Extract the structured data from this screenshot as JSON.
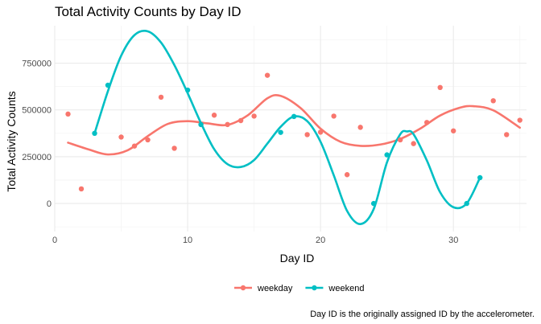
{
  "chart_data": {
    "type": "scatter",
    "title": "Total Activity Counts by Day ID",
    "xlabel": "Day ID",
    "ylabel": "Total Activity Counts",
    "caption": "Day ID is the originally assigned ID by the accelerometer.",
    "xlim": [
      0,
      35.5
    ],
    "ylim": [
      -150000,
      950000
    ],
    "x_ticks": [
      0,
      10,
      20,
      30
    ],
    "y_ticks": [
      0,
      250000,
      500000,
      750000
    ],
    "x_tick_labels": [
      "0",
      "10",
      "20",
      "30"
    ],
    "y_tick_labels": [
      "0",
      "250000",
      "500000",
      "750000"
    ],
    "grid": true,
    "legend_position": "bottom",
    "series": [
      {
        "name": "weekday",
        "color": "#F8766D",
        "points": [
          [
            1,
            478000
          ],
          [
            2,
            78000
          ],
          [
            5,
            355000
          ],
          [
            6,
            307000
          ],
          [
            7,
            340000
          ],
          [
            8,
            568000
          ],
          [
            9,
            295000
          ],
          [
            11,
            422000
          ],
          [
            12,
            472000
          ],
          [
            13,
            422000
          ],
          [
            14,
            443000
          ],
          [
            15,
            467000
          ],
          [
            16,
            685000
          ],
          [
            19,
            368000
          ],
          [
            20,
            381000
          ],
          [
            21,
            467000
          ],
          [
            22,
            154000
          ],
          [
            23,
            407000
          ],
          [
            26,
            340000
          ],
          [
            27,
            320000
          ],
          [
            28,
            433000
          ],
          [
            29,
            620000
          ],
          [
            30,
            388000
          ],
          [
            33,
            549000
          ],
          [
            34,
            368000
          ],
          [
            35,
            445000
          ]
        ],
        "smooth": [
          [
            1,
            325000
          ],
          [
            2.5,
            290000
          ],
          [
            4,
            262000
          ],
          [
            5.5,
            285000
          ],
          [
            7,
            360000
          ],
          [
            8.5,
            425000
          ],
          [
            10,
            440000
          ],
          [
            11.5,
            428000
          ],
          [
            13,
            420000
          ],
          [
            14.5,
            470000
          ],
          [
            16,
            562000
          ],
          [
            17,
            575000
          ],
          [
            18.5,
            510000
          ],
          [
            20,
            400000
          ],
          [
            21.5,
            330000
          ],
          [
            23,
            308000
          ],
          [
            24.5,
            315000
          ],
          [
            26,
            345000
          ],
          [
            27.5,
            400000
          ],
          [
            29,
            470000
          ],
          [
            30.5,
            512000
          ],
          [
            31.5,
            520000
          ],
          [
            33,
            498000
          ],
          [
            35,
            405000
          ]
        ]
      },
      {
        "name": "weekend",
        "color": "#00BFC4",
        "points": [
          [
            3,
            375000
          ],
          [
            4,
            632000
          ],
          [
            10,
            606000
          ],
          [
            11,
            422000
          ],
          [
            17,
            380000
          ],
          [
            18,
            465000
          ],
          [
            24,
            0
          ],
          [
            25,
            260000
          ],
          [
            31,
            0
          ],
          [
            32,
            138000
          ]
        ],
        "smooth": [
          [
            3,
            375000
          ],
          [
            4,
            600000
          ],
          [
            5,
            790000
          ],
          [
            6,
            900000
          ],
          [
            7,
            920000
          ],
          [
            8,
            860000
          ],
          [
            9,
            740000
          ],
          [
            10,
            590000
          ],
          [
            11,
            430000
          ],
          [
            12,
            290000
          ],
          [
            13,
            210000
          ],
          [
            14,
            195000
          ],
          [
            15,
            232000
          ],
          [
            16,
            320000
          ],
          [
            17,
            410000
          ],
          [
            18,
            465000
          ],
          [
            19,
            440000
          ],
          [
            20,
            330000
          ],
          [
            21,
            150000
          ],
          [
            22,
            -40000
          ],
          [
            23,
            -110000
          ],
          [
            24,
            -30000
          ],
          [
            25,
            220000
          ],
          [
            26,
            370000
          ],
          [
            26.5,
            385000
          ],
          [
            27,
            370000
          ],
          [
            28,
            230000
          ],
          [
            29,
            60000
          ],
          [
            30,
            -20000
          ],
          [
            31,
            0
          ],
          [
            32,
            138000
          ]
        ]
      }
    ]
  }
}
